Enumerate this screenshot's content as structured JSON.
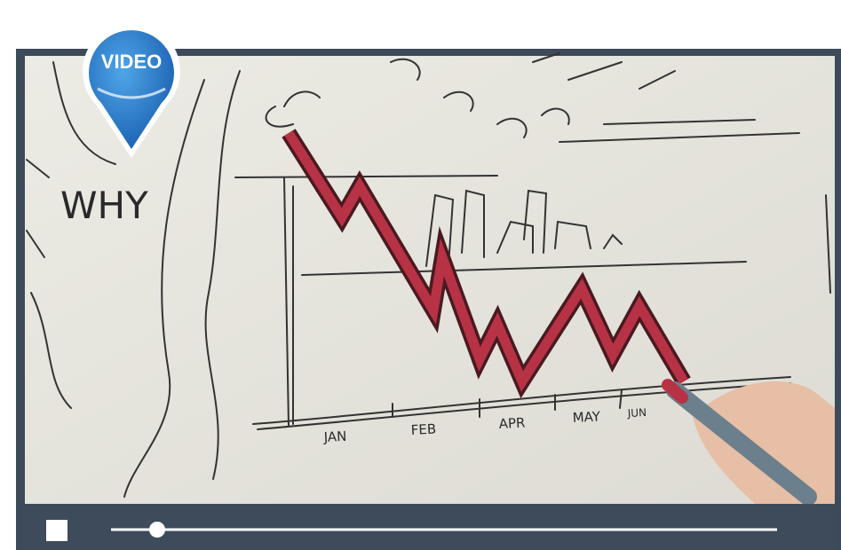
{
  "badge": {
    "label": "VIDEO"
  },
  "video_frame": {
    "heading": "WHY",
    "months": [
      "JAN",
      "FEB",
      "APR",
      "MAY",
      "JUN"
    ]
  }
}
